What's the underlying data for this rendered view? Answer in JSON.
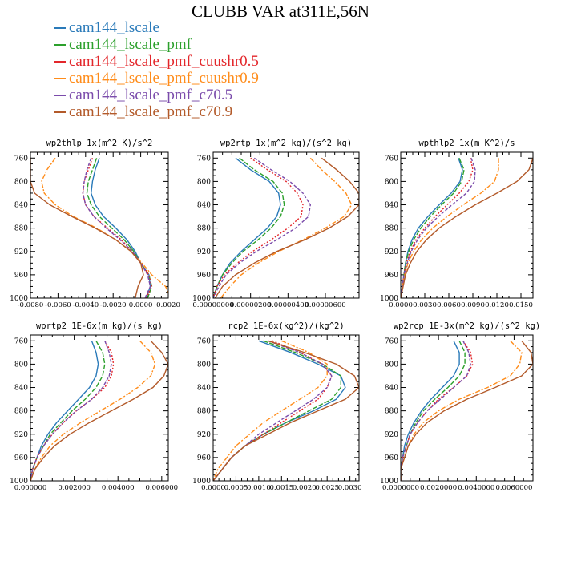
{
  "title": "CLUBB VAR at311E,56N",
  "legend": [
    {
      "label": "cam144_lscale",
      "color": "#2a7ab9"
    },
    {
      "label": "cam144_lscale_pmf",
      "color": "#2ca02c"
    },
    {
      "label": "cam144_lscale_pmf_cuushr0.5",
      "color": "#e3272b"
    },
    {
      "label": "cam144_lscale_pmf_cuushr0.9",
      "color": "#ff8c1a"
    },
    {
      "label": "cam144_lscale_pmf_c70.5",
      "color": "#7b4cab"
    },
    {
      "label": "cam144_lscale_pmf_c70.9",
      "color": "#b35a2a"
    }
  ],
  "chart_data": [
    {
      "type": "line",
      "title": "wp2thlp  1x(m^2 K)/s^2",
      "ylim": [
        1000,
        750
      ],
      "yticks": [
        "760",
        "800",
        "840",
        "880",
        "920",
        "960",
        "1000"
      ],
      "xlim": [
        -0.008,
        0.002
      ],
      "xticks": [
        -0.008,
        -0.006,
        -0.004,
        -0.002,
        0.0,
        0.002
      ],
      "xtick_labels": [
        "-0.0080",
        "-0.0060",
        "-0.0040",
        "-0.0020",
        "0.0000",
        "0.0020"
      ],
      "y": [
        760,
        780,
        800,
        820,
        840,
        860,
        880,
        900,
        920,
        940,
        960,
        980,
        1000
      ],
      "series": [
        {
          "name": "cam144_lscale",
          "values": [
            -0.003,
            -0.0033,
            -0.0035,
            -0.0036,
            -0.0033,
            -0.0027,
            -0.0018,
            -0.001,
            -0.0004,
            0.0,
            0.0006,
            0.0007,
            0.0004
          ]
        },
        {
          "name": "cam144_lscale_pmf",
          "values": [
            -0.0032,
            -0.0035,
            -0.0038,
            -0.0039,
            -0.0036,
            -0.003,
            -0.0021,
            -0.0012,
            -0.0005,
            0.0,
            0.0006,
            0.0008,
            0.0005
          ]
        },
        {
          "name": "cam144_lscale_pmf_cuushr0.5",
          "values": [
            -0.0035,
            -0.0038,
            -0.0041,
            -0.0042,
            -0.004,
            -0.0034,
            -0.0024,
            -0.0014,
            -0.0006,
            0.0,
            0.0006,
            0.0008,
            0.0004
          ]
        },
        {
          "name": "cam144_lscale_pmf_cuushr0.9",
          "values": [
            -0.0062,
            -0.0068,
            -0.0072,
            -0.007,
            -0.0062,
            -0.0049,
            -0.0032,
            -0.0018,
            -0.0007,
            0.0001,
            0.0008,
            0.0018,
            0.0022
          ]
        },
        {
          "name": "cam144_lscale_pmf_c70.5",
          "values": [
            -0.0036,
            -0.0039,
            -0.0041,
            -0.0042,
            -0.004,
            -0.0034,
            -0.0025,
            -0.0015,
            -0.0006,
            0.0,
            0.0005,
            0.0007,
            0.0003
          ]
        },
        {
          "name": "cam144_lscale_pmf_c70.9",
          "values": [
            -0.008,
            -0.008,
            -0.008,
            -0.0077,
            -0.0066,
            -0.005,
            -0.0033,
            -0.0018,
            -0.0007,
            0.0,
            0.0002,
            -0.0002,
            -0.0004
          ]
        }
      ]
    },
    {
      "type": "line",
      "title": "wp2rtp  1x(m^2 kg)/(s^2 kg)",
      "ylim": [
        1000,
        750
      ],
      "yticks": [
        "760",
        "800",
        "840",
        "880",
        "920",
        "960",
        "1000"
      ],
      "xlim": [
        0.0,
        7.8e-06
      ],
      "xticks": [
        0.0,
        2e-06,
        4e-06,
        6e-06
      ],
      "xtick_labels": [
        "0.00000000",
        "0.00000200",
        "0.00000400",
        "0.00000600"
      ],
      "y": [
        760,
        780,
        800,
        820,
        840,
        860,
        880,
        900,
        920,
        940,
        960,
        980,
        1000
      ],
      "series": [
        {
          "name": "cam144_lscale",
          "values": [
            1.2e-06,
            2e-06,
            3e-06,
            3.5e-06,
            3.6e-06,
            3.4e-06,
            2.9e-06,
            2.2e-06,
            1.5e-06,
            9e-07,
            5e-07,
            2e-07,
            0.0
          ]
        },
        {
          "name": "cam144_lscale_pmf",
          "values": [
            1.4e-06,
            2.2e-06,
            3.2e-06,
            3.7e-06,
            3.8e-06,
            3.6e-06,
            3.1e-06,
            2.4e-06,
            1.6e-06,
            1e-06,
            5e-07,
            2e-07,
            0.0
          ]
        },
        {
          "name": "cam144_lscale_pmf_cuushr0.5",
          "values": [
            2e-06,
            2.9e-06,
            3.9e-06,
            4.5e-06,
            4.8e-06,
            4.7e-06,
            4e-06,
            3.1e-06,
            2.1e-06,
            1.3e-06,
            6e-07,
            2e-07,
            0.0
          ]
        },
        {
          "name": "cam144_lscale_pmf_cuushr0.9",
          "values": [
            5.2e-06,
            5.8e-06,
            6.5e-06,
            7.1e-06,
            7.4e-06,
            7e-06,
            6e-06,
            4.8e-06,
            3.5e-06,
            2.4e-06,
            1.5e-06,
            9e-07,
            4e-07
          ]
        },
        {
          "name": "cam144_lscale_pmf_c70.5",
          "values": [
            2.2e-06,
            3.1e-06,
            4.1e-06,
            4.8e-06,
            5.2e-06,
            5.1e-06,
            4.4e-06,
            3.4e-06,
            2.3e-06,
            1.4e-06,
            7e-07,
            3e-07,
            0.0
          ]
        },
        {
          "name": "cam144_lscale_pmf_c70.9",
          "values": [
            5.8e-06,
            6.6e-06,
            7.3e-06,
            7.8e-06,
            7.8e-06,
            7.2e-06,
            6.2e-06,
            4.9e-06,
            3.4e-06,
            2.2e-06,
            1.2e-06,
            5e-07,
            1e-07
          ]
        }
      ]
    },
    {
      "type": "line",
      "title": "wpthlp2  1x(m K^2)/s",
      "ylim": [
        1000,
        750
      ],
      "yticks": [
        "760",
        "800",
        "840",
        "880",
        "920",
        "960",
        "1000"
      ],
      "xlim": [
        0.0,
        0.0165
      ],
      "xticks": [
        0.0,
        0.003,
        0.006,
        0.009,
        0.012,
        0.015
      ],
      "xtick_labels": [
        "0.0000",
        "0.0030",
        "0.0060",
        "0.0090",
        "0.0120",
        "0.0150"
      ],
      "y": [
        760,
        780,
        800,
        820,
        840,
        860,
        880,
        900,
        920,
        940,
        960,
        980,
        1000
      ],
      "series": [
        {
          "name": "cam144_lscale",
          "values": [
            0.0072,
            0.0077,
            0.0074,
            0.0063,
            0.0048,
            0.0034,
            0.0022,
            0.0014,
            0.0009,
            0.0006,
            0.0004,
            0.0002,
            0.0
          ]
        },
        {
          "name": "cam144_lscale_pmf",
          "values": [
            0.0073,
            0.0079,
            0.0076,
            0.0066,
            0.0051,
            0.0037,
            0.0025,
            0.0016,
            0.001,
            0.0006,
            0.0004,
            0.0002,
            0.0
          ]
        },
        {
          "name": "cam144_lscale_pmf_cuushr0.5",
          "values": [
            0.0087,
            0.009,
            0.0085,
            0.0073,
            0.0058,
            0.0043,
            0.003,
            0.0019,
            0.0012,
            0.0007,
            0.0004,
            0.0002,
            0.0
          ]
        },
        {
          "name": "cam144_lscale_pmf_cuushr0.9",
          "values": [
            0.0122,
            0.0122,
            0.0117,
            0.01,
            0.0078,
            0.0058,
            0.004,
            0.0026,
            0.0016,
            0.0009,
            0.0005,
            0.0002,
            0.0
          ]
        },
        {
          "name": "cam144_lscale_pmf_c70.5",
          "values": [
            0.0088,
            0.0093,
            0.0092,
            0.0082,
            0.0064,
            0.0047,
            0.0032,
            0.0021,
            0.0013,
            0.0008,
            0.0004,
            0.0002,
            0.0
          ]
        },
        {
          "name": "cam144_lscale_pmf_c70.9",
          "values": [
            0.0165,
            0.016,
            0.0145,
            0.012,
            0.0093,
            0.0069,
            0.0048,
            0.0032,
            0.002,
            0.0012,
            0.0006,
            0.0003,
            0.0
          ]
        }
      ]
    },
    {
      "type": "line",
      "title": "wprtp2  1E-6x(m kg)/(s kg)",
      "ylim": [
        1000,
        750
      ],
      "yticks": [
        "760",
        "800",
        "840",
        "880",
        "920",
        "960",
        "1000"
      ],
      "xlim": [
        0.0,
        0.0063
      ],
      "xticks": [
        0.0,
        0.002,
        0.004,
        0.006
      ],
      "xtick_labels": [
        "0.000000",
        "0.002000",
        "0.004000",
        "0.006000"
      ],
      "y": [
        760,
        780,
        800,
        820,
        840,
        860,
        880,
        900,
        920,
        940,
        960,
        980,
        1000
      ],
      "series": [
        {
          "name": "cam144_lscale",
          "values": [
            0.0028,
            0.003,
            0.0031,
            0.003,
            0.0027,
            0.0022,
            0.0017,
            0.0012,
            0.0008,
            0.0005,
            0.0003,
            0.0001,
            0.0
          ]
        },
        {
          "name": "cam144_lscale_pmf",
          "values": [
            0.003,
            0.0033,
            0.0034,
            0.0033,
            0.003,
            0.0025,
            0.0019,
            0.0014,
            0.0009,
            0.0006,
            0.0003,
            0.0001,
            0.0
          ]
        },
        {
          "name": "cam144_lscale_pmf_cuushr0.5",
          "values": [
            0.0034,
            0.0037,
            0.0038,
            0.0037,
            0.0034,
            0.0028,
            0.0021,
            0.0015,
            0.001,
            0.0006,
            0.0003,
            0.0001,
            0.0
          ]
        },
        {
          "name": "cam144_lscale_pmf_cuushr0.9",
          "values": [
            0.005,
            0.0055,
            0.0057,
            0.0055,
            0.0049,
            0.0041,
            0.0032,
            0.0023,
            0.0015,
            0.0009,
            0.0005,
            0.0002,
            0.0
          ]
        },
        {
          "name": "cam144_lscale_pmf_c70.5",
          "values": [
            0.0034,
            0.0036,
            0.0037,
            0.0036,
            0.0033,
            0.0028,
            0.0021,
            0.0015,
            0.001,
            0.0006,
            0.0003,
            0.0001,
            0.0
          ]
        },
        {
          "name": "cam144_lscale_pmf_c70.9",
          "values": [
            0.0055,
            0.006,
            0.0063,
            0.0061,
            0.0056,
            0.0047,
            0.0037,
            0.0027,
            0.0018,
            0.0011,
            0.0006,
            0.0002,
            0.0
          ]
        }
      ]
    },
    {
      "type": "line",
      "title": "rcp2  1E-6x(kg^2)/(kg^2)",
      "ylim": [
        1000,
        750
      ],
      "yticks": [
        "760",
        "800",
        "840",
        "880",
        "920",
        "960",
        "1000"
      ],
      "xlim": [
        0.0,
        0.0032
      ],
      "xticks": [
        0.0,
        0.0005,
        0.001,
        0.0015,
        0.002,
        0.0025,
        0.003
      ],
      "xtick_labels": [
        "0.0000",
        "0.0005",
        "0.0010",
        "0.0015",
        "0.0020",
        "0.0025",
        "0.0030"
      ],
      "y": [
        760,
        780,
        800,
        820,
        840,
        860,
        880,
        900,
        920,
        940,
        960,
        980,
        1000
      ],
      "series": [
        {
          "name": "cam144_lscale",
          "values": [
            0.001,
            0.0017,
            0.0023,
            0.0028,
            0.0029,
            0.0027,
            0.0022,
            0.0016,
            0.0011,
            0.0007,
            0.0004,
            0.0002,
            0.0
          ]
        },
        {
          "name": "cam144_lscale_pmf",
          "values": [
            0.0011,
            0.0018,
            0.0024,
            0.0028,
            0.0028,
            0.0026,
            0.0021,
            0.0016,
            0.0011,
            0.0007,
            0.0004,
            0.0002,
            0.0
          ]
        },
        {
          "name": "cam144_lscale_pmf_cuushr0.5",
          "values": [
            0.0013,
            0.0019,
            0.0024,
            0.0026,
            0.0025,
            0.0023,
            0.0019,
            0.0015,
            0.0011,
            0.0007,
            0.0004,
            0.0002,
            0.0
          ]
        },
        {
          "name": "cam144_lscale_pmf_cuushr0.9",
          "values": [
            0.0015,
            0.0021,
            0.0025,
            0.0025,
            0.0023,
            0.0019,
            0.0015,
            0.0011,
            0.0008,
            0.0005,
            0.0003,
            0.0001,
            0.0
          ]
        },
        {
          "name": "cam144_lscale_pmf_c70.5",
          "values": [
            0.0012,
            0.0019,
            0.0024,
            0.0026,
            0.0025,
            0.0022,
            0.0018,
            0.0014,
            0.001,
            0.0007,
            0.0004,
            0.0002,
            0.0
          ]
        },
        {
          "name": "cam144_lscale_pmf_c70.9",
          "values": [
            0.0012,
            0.002,
            0.0027,
            0.0031,
            0.0032,
            0.0029,
            0.0023,
            0.0017,
            0.0012,
            0.0007,
            0.0004,
            0.0002,
            0.0
          ]
        }
      ]
    },
    {
      "type": "line",
      "title": "wp2rcp  1E-3x(m^2 kg)/(s^2 kg)",
      "ylim": [
        1000,
        750
      ],
      "yticks": [
        "760",
        "800",
        "840",
        "880",
        "920",
        "960",
        "1000"
      ],
      "xlim": [
        0.0,
        0.007
      ],
      "xticks": [
        0.0,
        0.002,
        0.004,
        0.006
      ],
      "xtick_labels": [
        "0.0000000",
        "0.0020000",
        "0.0040000",
        "0.0060000"
      ],
      "y": [
        760,
        780,
        800,
        820,
        840,
        860,
        880,
        900,
        920,
        940,
        960,
        980,
        1000
      ],
      "series": [
        {
          "name": "cam144_lscale",
          "values": [
            0.0028,
            0.0031,
            0.0031,
            0.0028,
            0.0022,
            0.0016,
            0.0011,
            0.0007,
            0.0004,
            0.0002,
            0.0001,
            0.0,
            0.0
          ]
        },
        {
          "name": "cam144_lscale_pmf",
          "values": [
            0.0031,
            0.0034,
            0.0034,
            0.0031,
            0.0025,
            0.0018,
            0.0012,
            0.0008,
            0.0005,
            0.0003,
            0.0001,
            0.0,
            0.0
          ]
        },
        {
          "name": "cam144_lscale_pmf_cuushr0.5",
          "values": [
            0.0033,
            0.0037,
            0.0038,
            0.0035,
            0.0028,
            0.002,
            0.0014,
            0.0009,
            0.0005,
            0.0003,
            0.0001,
            0.0,
            0.0
          ]
        },
        {
          "name": "cam144_lscale_pmf_cuushr0.9",
          "values": [
            0.0058,
            0.0064,
            0.0063,
            0.0058,
            0.0046,
            0.0031,
            0.002,
            0.0012,
            0.0007,
            0.0004,
            0.0002,
            0.0,
            0.0
          ]
        },
        {
          "name": "cam144_lscale_pmf_c70.5",
          "values": [
            0.0033,
            0.0036,
            0.0037,
            0.0035,
            0.0028,
            0.0021,
            0.0014,
            0.0009,
            0.0005,
            0.0003,
            0.0001,
            0.0,
            0.0
          ]
        },
        {
          "name": "cam144_lscale_pmf_c70.9",
          "values": [
            0.0064,
            0.0069,
            0.007,
            0.0064,
            0.005,
            0.0035,
            0.0023,
            0.0014,
            0.0008,
            0.0004,
            0.0002,
            0.0,
            0.0
          ]
        }
      ]
    }
  ]
}
